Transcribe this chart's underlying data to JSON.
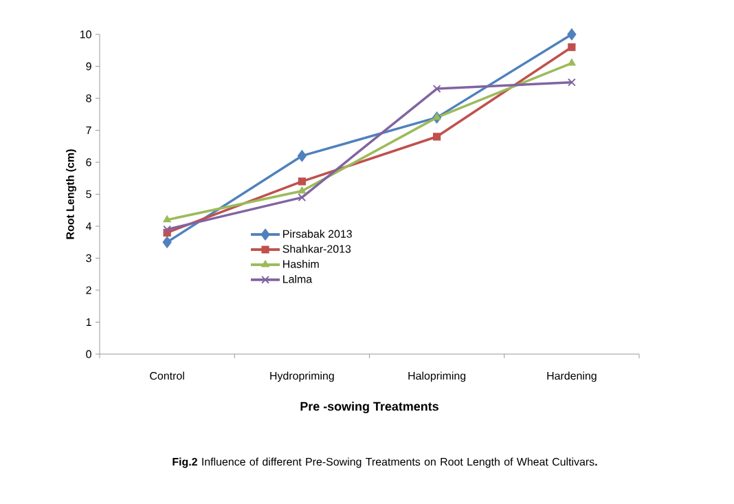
{
  "chart_data": {
    "type": "line",
    "xlabel": "Pre -sowing Treatments",
    "ylabel": "Root Length (cm)",
    "categories": [
      "Control",
      "Hydropriming",
      "Halopriming",
      "Hardening"
    ],
    "series": [
      {
        "name": "Pirsabak 2013",
        "color": "#4f81bd",
        "marker": "diamond",
        "values": [
          3.5,
          6.2,
          7.4,
          10.0
        ]
      },
      {
        "name": "Shahkar-2013",
        "color": "#c0504d",
        "marker": "square",
        "values": [
          3.8,
          5.4,
          6.8,
          9.6
        ]
      },
      {
        "name": "Hashim",
        "color": "#9bbb59",
        "marker": "triangle",
        "values": [
          4.2,
          5.1,
          7.4,
          9.1
        ]
      },
      {
        "name": "Lalma",
        "color": "#8064a2",
        "marker": "cross",
        "values": [
          3.9,
          4.9,
          8.3,
          8.5
        ]
      }
    ],
    "ylim": [
      0,
      10
    ],
    "yticks": [
      0,
      1,
      2,
      3,
      4,
      5,
      6,
      7,
      8,
      9,
      10
    ],
    "grid": false,
    "legend": "center",
    "line_style": "solid",
    "annotations": [
      "**Fig.2** Influence of different Pre-Sowing Treatments  on Root Length of Wheat Cultivars**.**"
    ]
  }
}
